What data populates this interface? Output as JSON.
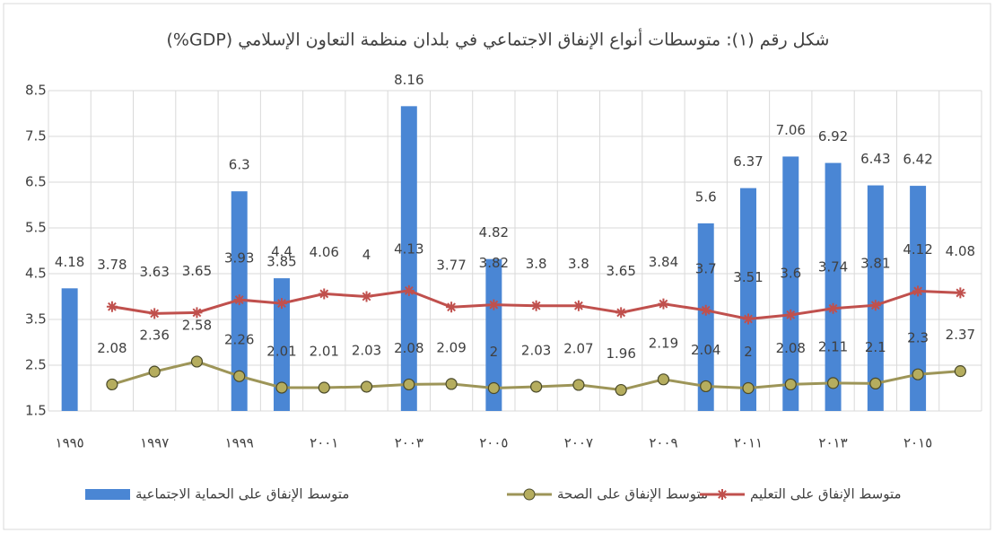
{
  "chart_data": {
    "type": "bar",
    "title": "شكل رقم (١): متوسطات أنواع الإنفاق الاجتماعي في بلدان منظمة التعاون الإسلامي (GDP%)",
    "categories": [
      "١٩٩٥",
      null,
      "١٩٩٧",
      null,
      "١٩٩٩",
      null,
      "٢٠٠١",
      null,
      "٢٠٠٣",
      null,
      "٢٠٠٥",
      null,
      "٢٠٠٧",
      null,
      "٢٠٠٩",
      null,
      "٢٠١١",
      null,
      "٢٠١٣",
      null,
      "٢٠١٥",
      null
    ],
    "series": [
      {
        "name": "متوسط الإنفاق على الحماية الاجتماعية",
        "type": "bar",
        "color": "#4a86d4",
        "values": [
          4.18,
          null,
          null,
          null,
          6.3,
          4.4,
          null,
          null,
          8.16,
          null,
          4.82,
          null,
          null,
          null,
          null,
          5.6,
          6.37,
          7.06,
          6.92,
          6.43,
          6.42,
          null
        ]
      },
      {
        "name": "متوسط الإنفاق على الصحة",
        "type": "line",
        "marker": "circle",
        "color": "#9d9558",
        "values": [
          null,
          2.08,
          2.36,
          2.58,
          2.26,
          2.01,
          2.01,
          2.03,
          2.08,
          2.09,
          2,
          2.03,
          2.07,
          1.96,
          2.19,
          2.04,
          2,
          2.08,
          2.11,
          2.1,
          2.3,
          2.37
        ]
      },
      {
        "name": "متوسط الإنفاق على التعليم",
        "type": "line",
        "marker": "star",
        "color": "#c0504d",
        "values": [
          null,
          3.78,
          3.63,
          3.65,
          3.93,
          3.85,
          4.06,
          4,
          4.13,
          3.77,
          3.82,
          3.8,
          3.8,
          3.65,
          3.84,
          3.7,
          3.51,
          3.6,
          3.74,
          3.81,
          4.12,
          4.08
        ]
      }
    ],
    "ylim": [
      1.5,
      8.5
    ],
    "yticks": [
      1.5,
      2.5,
      3.5,
      4.5,
      5.5,
      6.5,
      7.5,
      8.5
    ],
    "grid": true,
    "legend": "bottom"
  }
}
